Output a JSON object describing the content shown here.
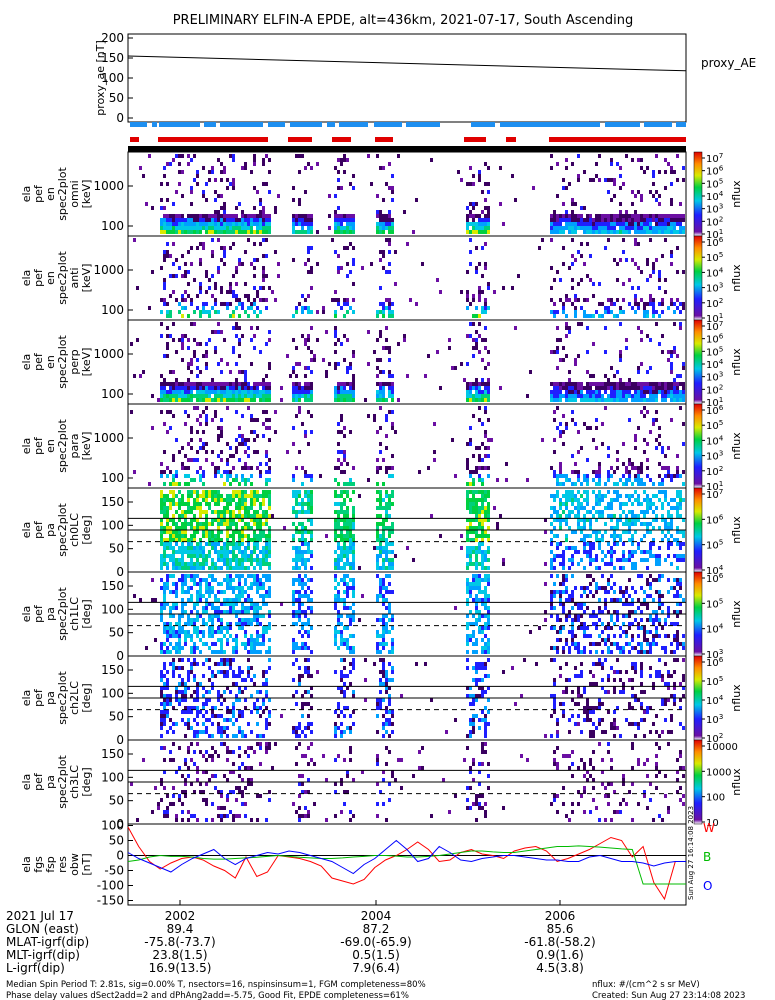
{
  "title": "PRELIMINARY ELFIN-A EPDE, alt=436km, 2021-07-17, South Ascending",
  "colors": {
    "ae_line": "#000000",
    "bar_blue": "#1e8ff0",
    "bar_red": "#e00000",
    "grid": "#000000"
  },
  "chart_data": [
    {
      "type": "line",
      "ylabel": "proxy_ae [nT]",
      "legend": "proxy_AE",
      "yticks": [
        "200",
        "150",
        "100",
        "50",
        "0"
      ],
      "ylim": [
        -10,
        210
      ],
      "x": [
        0,
        1
      ],
      "values": [
        155,
        118
      ]
    },
    {
      "type": "heatmap",
      "ylabel": "ela pef en spec2plot omni [keV]",
      "yticks": [
        "1000",
        "100"
      ],
      "colorbar_label": "nflux",
      "colorbar_ticks": [
        "10^7",
        "10^6",
        "10^5",
        "10^4",
        "10^3",
        "10^2",
        "10^1"
      ]
    },
    {
      "type": "heatmap",
      "ylabel": "ela pef en spec2plot anti [keV]",
      "yticks": [
        "1000",
        "100"
      ],
      "colorbar_label": "nflux",
      "colorbar_ticks": [
        "10^6",
        "10^5",
        "10^4",
        "10^3",
        "10^2",
        "10^1"
      ]
    },
    {
      "type": "heatmap",
      "ylabel": "ela pef en spec2plot perp [keV]",
      "yticks": [
        "1000",
        "100"
      ],
      "colorbar_label": "nflux",
      "colorbar_ticks": [
        "10^7",
        "10^6",
        "10^5",
        "10^4",
        "10^3",
        "10^2",
        "10^1"
      ]
    },
    {
      "type": "heatmap",
      "ylabel": "ela pef en spec2plot para [keV]",
      "yticks": [
        "1000",
        "100"
      ],
      "colorbar_label": "nflux",
      "colorbar_ticks": [
        "10^6",
        "10^5",
        "10^4",
        "10^3",
        "10^2",
        "10^1"
      ]
    },
    {
      "type": "heatmap",
      "ylabel": "ela pef pa spec2plot ch0LC [deg]",
      "yticks": [
        "150",
        "100",
        "50",
        "0"
      ],
      "colorbar_label": "nflux",
      "colorbar_ticks": [
        "10^7",
        "10^6",
        "10^5",
        "10^4"
      ]
    },
    {
      "type": "heatmap",
      "ylabel": "ela pef pa spec2plot ch1LC [deg]",
      "yticks": [
        "150",
        "100",
        "50",
        "0"
      ],
      "colorbar_label": "nflux",
      "colorbar_ticks": [
        "10^6",
        "10^5",
        "10^4",
        "10^3"
      ]
    },
    {
      "type": "heatmap",
      "ylabel": "ela pef pa spec2plot ch2LC [deg]",
      "yticks": [
        "150",
        "100",
        "50",
        "0"
      ],
      "colorbar_label": "nflux",
      "colorbar_ticks": [
        "10^6",
        "10^5",
        "10^4",
        "10^3",
        "10^2"
      ]
    },
    {
      "type": "heatmap",
      "ylabel": "ela pef pa spec2plot ch3LC [deg]",
      "yticks": [
        "150",
        "100",
        "50",
        "0"
      ],
      "colorbar_label": "nflux",
      "colorbar_ticks": [
        "10000",
        "1000",
        "100",
        "10"
      ]
    },
    {
      "type": "line",
      "ylabel": "ela fgs fsp res obw [nT]",
      "yticks": [
        "100",
        "50",
        "0",
        "-50",
        "-100",
        "-150"
      ],
      "ylim": [
        -165,
        105
      ],
      "xlabels": [
        "2002",
        "2004",
        "2006"
      ],
      "series": [
        {
          "name": "W",
          "color": "#ff0000",
          "values": [
            95,
            30,
            -20,
            -45,
            -25,
            -10,
            -5,
            -15,
            -35,
            -50,
            -75,
            -5,
            -70,
            -55,
            0,
            -5,
            -10,
            -20,
            -35,
            -75,
            -85,
            -95,
            -80,
            -40,
            -15,
            0,
            20,
            45,
            20,
            -20,
            -15,
            10,
            20,
            5,
            0,
            -10,
            15,
            25,
            30,
            15,
            -20,
            -10,
            5,
            20,
            40,
            60,
            50,
            -5,
            30,
            -90,
            -145,
            -20,
            -20
          ]
        },
        {
          "name": "B",
          "color": "#00bb00",
          "values": [
            -20,
            -15,
            -5,
            0,
            -3,
            -3,
            -5,
            -10,
            -12,
            -12,
            -10,
            -8,
            -6,
            -3,
            0,
            -3,
            -6,
            -8,
            -10,
            -10,
            -8,
            -5,
            -3,
            0,
            0,
            -2,
            -5,
            -5,
            -3,
            0,
            5,
            10,
            15,
            15,
            12,
            10,
            10,
            15,
            20,
            25,
            30,
            30,
            32,
            30,
            28,
            25,
            22,
            20,
            -95,
            -95,
            -95,
            -95,
            -95
          ]
        },
        {
          "name": "O",
          "color": "#0000ff",
          "values": [
            10,
            -10,
            -25,
            -40,
            -55,
            -30,
            -10,
            5,
            20,
            -10,
            -30,
            -10,
            0,
            10,
            5,
            15,
            10,
            0,
            -10,
            -20,
            -40,
            -60,
            -30,
            -10,
            20,
            50,
            20,
            -20,
            -10,
            30,
            10,
            -15,
            -20,
            -10,
            -5,
            0,
            0,
            -5,
            -10,
            -15,
            -15,
            -20,
            -20,
            -5,
            0,
            -10,
            -20,
            -20,
            -25,
            -35,
            -25,
            -20,
            -20
          ]
        }
      ]
    }
  ],
  "orbit_rows": [
    {
      "label": "2021 Jul 17",
      "v": [
        "2002",
        "2004",
        "2006"
      ]
    },
    {
      "label": "GLON (east)",
      "v": [
        "89.4",
        "87.2",
        "85.6"
      ]
    },
    {
      "label": "MLAT-igrf(dip)",
      "v": [
        "-75.8(-73.7)",
        "-69.0(-65.9)",
        "-61.8(-58.2)"
      ]
    },
    {
      "label": "MLT-igrf(dip)",
      "v": [
        "23.8(1.5)",
        "0.5(1.5)",
        "0.9(1.6)"
      ]
    },
    {
      "label": "L-igrf(dip)",
      "v": [
        "16.9(13.5)",
        "7.9(6.4)",
        "4.5(3.8)"
      ]
    }
  ],
  "footer": {
    "line1": "Median Spin Period T: 2.81s, sig=0.00% T, nsectors=16, nspinsinsum=1, FGM completeness=80%",
    "line2": "Phase delay values dSect2add=2 and dPhAng2add=-5.75, Good Fit, EPDE completeness=61%",
    "right1": "nflux: #/(cm^2 s sr MeV)",
    "right2": "Created: Sun Aug 27 23:14:08 2023"
  },
  "side_stamp": "Sun Aug 27 16:14:08 2023"
}
